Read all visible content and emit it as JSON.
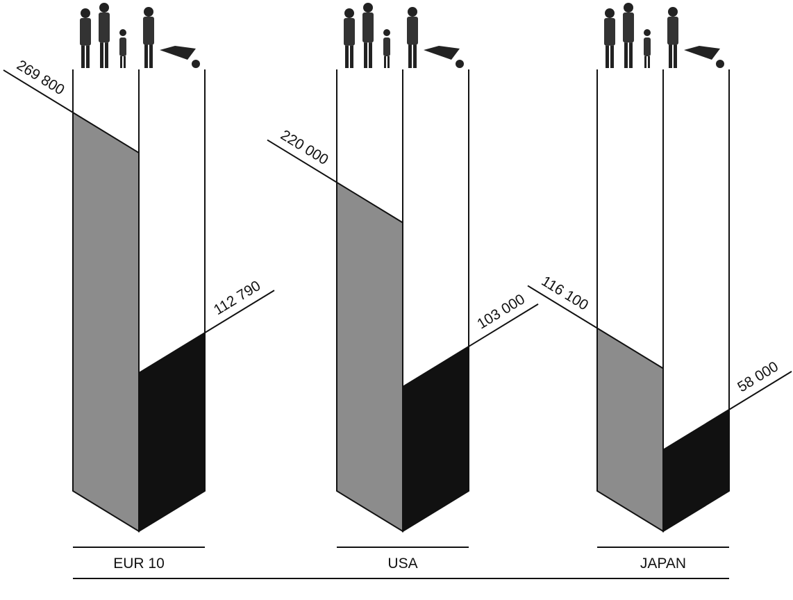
{
  "chart_data": {
    "type": "bar",
    "categories": [
      "EUR 10",
      "USA",
      "JAPAN"
    ],
    "series": [
      {
        "color": "#8c8c8c",
        "values": [
          269800,
          220000,
          116100
        ],
        "value_labels": [
          "269 800",
          "220 000",
          "116 100"
        ]
      },
      {
        "color": "#111111",
        "values": [
          112790,
          103000,
          58000
        ],
        "value_labels": [
          "112 790",
          "103 000",
          "58 000"
        ]
      }
    ]
  }
}
